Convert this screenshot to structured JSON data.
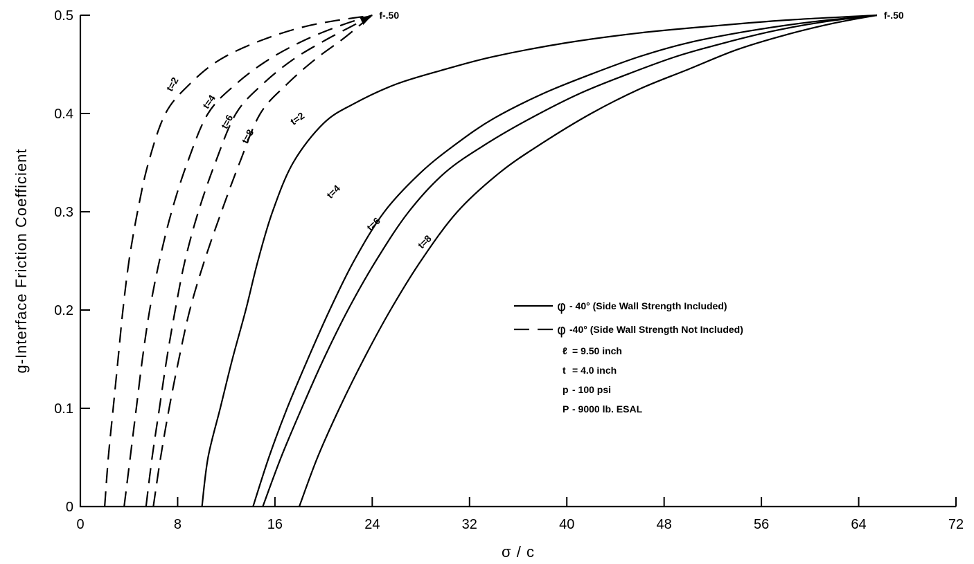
{
  "chart_data": {
    "type": "line",
    "xlabel": "σ / c",
    "ylabel": "g-Interface Friction Coefficient",
    "xlim": [
      0,
      72
    ],
    "ylim": [
      0,
      0.5
    ],
    "x_ticks": [
      0,
      8,
      16,
      24,
      32,
      40,
      48,
      56,
      64,
      72
    ],
    "y_ticks": [
      0,
      0.1,
      0.2,
      0.3,
      0.4,
      0.5
    ],
    "y_tick_labels": [
      "0",
      "0.1",
      "0.2",
      "0.3",
      "0.4",
      "0.5"
    ],
    "end_labels": [
      {
        "text": "f-.50",
        "x": 24,
        "y": 0.5
      },
      {
        "text": "f-.50",
        "x": 65.5,
        "y": 0.5
      }
    ],
    "series": [
      {
        "label": "t=2",
        "style": "solid",
        "points": [
          [
            10.0,
            0
          ],
          [
            10.5,
            0.05
          ],
          [
            11.5,
            0.1
          ],
          [
            12.5,
            0.15
          ],
          [
            13.6,
            0.2
          ],
          [
            14.6,
            0.25
          ],
          [
            15.8,
            0.3
          ],
          [
            17.5,
            0.35
          ],
          [
            20,
            0.39
          ],
          [
            22.5,
            0.41
          ],
          [
            26,
            0.43
          ],
          [
            30,
            0.445
          ],
          [
            34,
            0.458
          ],
          [
            40,
            0.472
          ],
          [
            46,
            0.482
          ],
          [
            52,
            0.489
          ],
          [
            58,
            0.495
          ],
          [
            65.5,
            0.5
          ]
        ]
      },
      {
        "label": "t=4",
        "style": "solid",
        "points": [
          [
            14.2,
            0
          ],
          [
            15.5,
            0.05
          ],
          [
            17,
            0.1
          ],
          [
            18.7,
            0.15
          ],
          [
            20.5,
            0.2
          ],
          [
            22.5,
            0.25
          ],
          [
            25,
            0.3
          ],
          [
            28,
            0.34
          ],
          [
            31,
            0.37
          ],
          [
            34,
            0.395
          ],
          [
            38,
            0.42
          ],
          [
            42,
            0.44
          ],
          [
            46,
            0.458
          ],
          [
            50,
            0.472
          ],
          [
            55,
            0.484
          ],
          [
            60,
            0.493
          ],
          [
            65.5,
            0.5
          ]
        ]
      },
      {
        "label": "t=6",
        "style": "solid",
        "points": [
          [
            15.0,
            0
          ],
          [
            16.5,
            0.05
          ],
          [
            18.2,
            0.1
          ],
          [
            20,
            0.15
          ],
          [
            22,
            0.2
          ],
          [
            24.3,
            0.25
          ],
          [
            27,
            0.3
          ],
          [
            30,
            0.34
          ],
          [
            33.5,
            0.37
          ],
          [
            37,
            0.395
          ],
          [
            41,
            0.42
          ],
          [
            45,
            0.44
          ],
          [
            49,
            0.458
          ],
          [
            53,
            0.472
          ],
          [
            57,
            0.484
          ],
          [
            61,
            0.493
          ],
          [
            65.5,
            0.5
          ]
        ]
      },
      {
        "label": "t=8",
        "style": "solid",
        "points": [
          [
            18.0,
            0
          ],
          [
            19.5,
            0.05
          ],
          [
            21.3,
            0.1
          ],
          [
            23.3,
            0.15
          ],
          [
            25.5,
            0.2
          ],
          [
            28,
            0.25
          ],
          [
            31,
            0.3
          ],
          [
            34.5,
            0.34
          ],
          [
            38,
            0.37
          ],
          [
            42,
            0.4
          ],
          [
            46,
            0.425
          ],
          [
            50,
            0.445
          ],
          [
            54,
            0.465
          ],
          [
            58,
            0.48
          ],
          [
            62,
            0.492
          ],
          [
            65.5,
            0.5
          ]
        ]
      },
      {
        "label": "t=2",
        "style": "dashed",
        "points": [
          [
            2.0,
            0
          ],
          [
            2.3,
            0.05
          ],
          [
            2.7,
            0.1
          ],
          [
            3.1,
            0.15
          ],
          [
            3.5,
            0.2
          ],
          [
            4.0,
            0.25
          ],
          [
            4.7,
            0.3
          ],
          [
            5.6,
            0.35
          ],
          [
            7.0,
            0.4
          ],
          [
            9.0,
            0.43
          ],
          [
            11.5,
            0.455
          ],
          [
            15,
            0.475
          ],
          [
            19,
            0.49
          ],
          [
            24,
            0.5
          ]
        ]
      },
      {
        "label": "t=4",
        "style": "dashed",
        "points": [
          [
            3.6,
            0
          ],
          [
            4.1,
            0.05
          ],
          [
            4.6,
            0.1
          ],
          [
            5.1,
            0.15
          ],
          [
            5.7,
            0.2
          ],
          [
            6.5,
            0.25
          ],
          [
            7.5,
            0.3
          ],
          [
            8.8,
            0.35
          ],
          [
            10.5,
            0.4
          ],
          [
            12.8,
            0.43
          ],
          [
            15.5,
            0.455
          ],
          [
            18.5,
            0.475
          ],
          [
            21.5,
            0.49
          ],
          [
            24,
            0.5
          ]
        ]
      },
      {
        "label": "t=6",
        "style": "dashed",
        "points": [
          [
            5.4,
            0
          ],
          [
            5.9,
            0.05
          ],
          [
            6.5,
            0.1
          ],
          [
            7.1,
            0.15
          ],
          [
            7.8,
            0.2
          ],
          [
            8.6,
            0.25
          ],
          [
            9.7,
            0.3
          ],
          [
            11.1,
            0.35
          ],
          [
            12.8,
            0.4
          ],
          [
            15,
            0.43
          ],
          [
            17.5,
            0.455
          ],
          [
            20.2,
            0.475
          ],
          [
            22.5,
            0.49
          ],
          [
            24,
            0.5
          ]
        ]
      },
      {
        "label": "t=8",
        "style": "dashed",
        "points": [
          [
            6.0,
            0
          ],
          [
            6.6,
            0.05
          ],
          [
            7.3,
            0.1
          ],
          [
            8.1,
            0.15
          ],
          [
            9.0,
            0.2
          ],
          [
            10.2,
            0.25
          ],
          [
            11.6,
            0.3
          ],
          [
            13.1,
            0.35
          ],
          [
            14.8,
            0.4
          ],
          [
            17,
            0.43
          ],
          [
            19.3,
            0.455
          ],
          [
            21.5,
            0.475
          ],
          [
            23,
            0.49
          ],
          [
            24,
            0.5
          ]
        ]
      }
    ],
    "curve_labels": [
      {
        "text": "t=2",
        "x": 7.8,
        "y": 0.428,
        "rot": -60
      },
      {
        "text": "t=4",
        "x": 10.8,
        "y": 0.41,
        "rot": -55
      },
      {
        "text": "t=6",
        "x": 12.3,
        "y": 0.39,
        "rot": -62
      },
      {
        "text": "t=8",
        "x": 14.0,
        "y": 0.375,
        "rot": -62
      },
      {
        "text": "t=2",
        "x": 18.0,
        "y": 0.392,
        "rot": -35
      },
      {
        "text": "t=4",
        "x": 21.0,
        "y": 0.318,
        "rot": -45
      },
      {
        "text": "t=6",
        "x": 24.3,
        "y": 0.285,
        "rot": -45
      },
      {
        "text": "t=8",
        "x": 28.5,
        "y": 0.267,
        "rot": -45
      }
    ],
    "legend": {
      "placement": "right-center",
      "entries": [
        {
          "style": "solid",
          "symbol": "φ",
          "text": "- 40° (Side Wall Strength Included)"
        },
        {
          "style": "dashed",
          "symbol": "φ",
          "text": "-40° (Side Wall Strength Not Included)"
        }
      ],
      "notes": [
        {
          "symbol": "ℓ",
          "text": "= 9.50 inch"
        },
        {
          "symbol": "t",
          "text": "= 4.0 inch"
        },
        {
          "symbol": "p",
          "text": "- 100 psi"
        },
        {
          "symbol": "P",
          "text": "- 9000 lb. ESAL"
        }
      ]
    }
  }
}
